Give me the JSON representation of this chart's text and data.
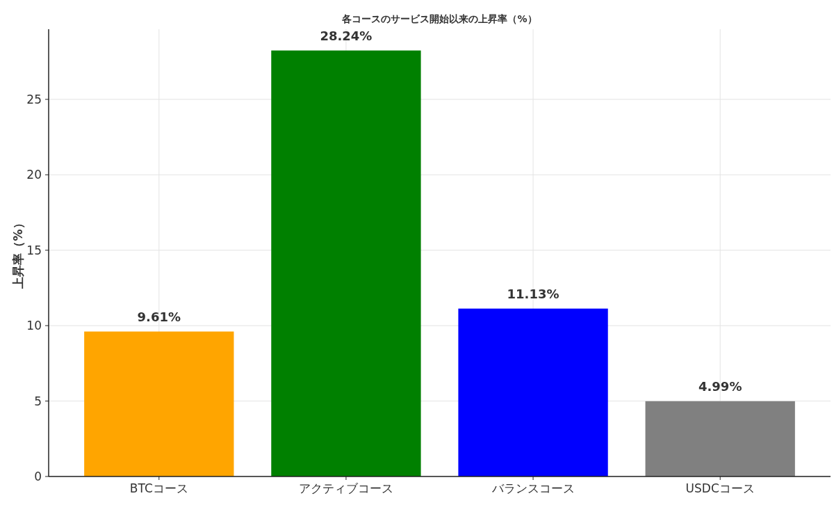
{
  "chart_data": {
    "type": "bar",
    "title": "各コースのサービス開始以来の上昇率（%）",
    "ylabel": "上昇率（%）",
    "categories": [
      "BTCコース",
      "アクティブコース",
      "バランスコース",
      "USDCコース"
    ],
    "values": [
      9.61,
      28.24,
      11.13,
      4.99
    ],
    "colors": [
      "#ffa500",
      "#008000",
      "#0000ff",
      "#808080"
    ],
    "value_labels": [
      "9.61%",
      "28.24%",
      "11.13%",
      "4.99%"
    ],
    "ylim": [
      0,
      29.65
    ],
    "yticks": [
      0,
      5,
      10,
      15,
      20,
      25
    ],
    "grid": true
  }
}
